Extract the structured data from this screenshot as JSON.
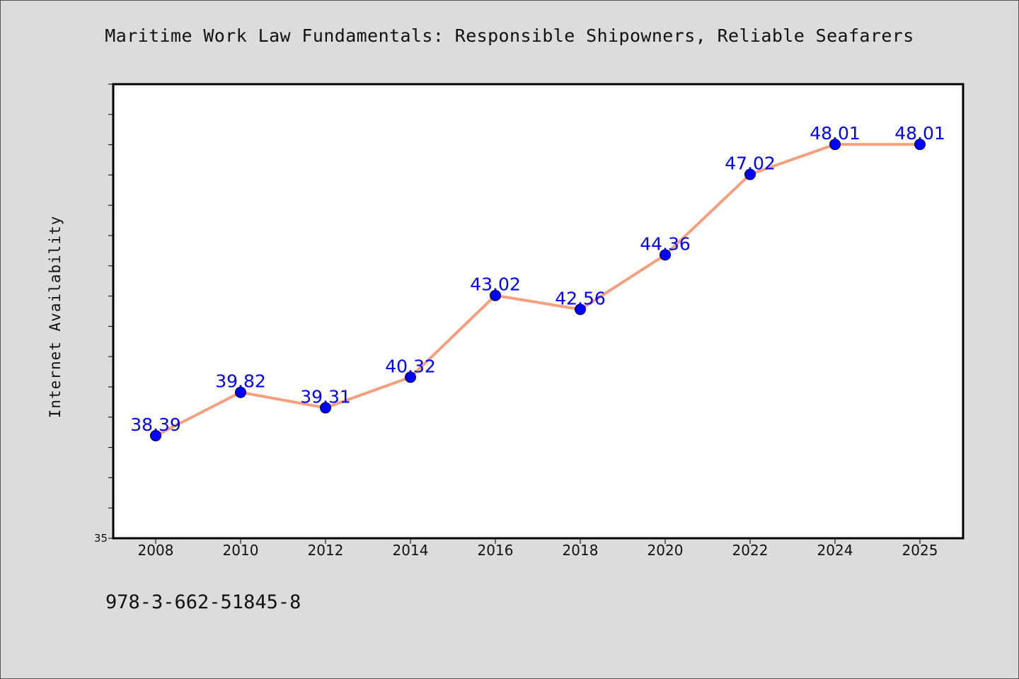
{
  "footer": {
    "code": "978-3-662-51845-8"
  },
  "colors": {
    "background": "#dcdcdc",
    "plot_background": "#ffffff",
    "line": "#f4a07e",
    "marker": "#0000ff",
    "data_label": "#0000ff"
  },
  "chart_data": {
    "type": "line",
    "title": "Maritime Work Law Fundamentals: Responsible Shipowners, Reliable Seafarers",
    "xlabel": "",
    "ylabel": "Internet Availability",
    "categories": [
      "2008",
      "2010",
      "2012",
      "2014",
      "2016",
      "2018",
      "2020",
      "2022",
      "2024",
      "2025"
    ],
    "series": [
      {
        "values": [
          38.39,
          39.82,
          39.31,
          40.32,
          43.02,
          42.56,
          44.36,
          47.02,
          48.01,
          48.01
        ],
        "labels": [
          "38.39",
          "39.82",
          "39.31",
          "40.32",
          "43.02",
          "42.56",
          "44.36",
          "47.02",
          "48.01",
          "48.01"
        ]
      }
    ],
    "ylim": [
      35,
      50
    ],
    "yticks_labeled": [
      "35"
    ],
    "grid": false,
    "legend": "none"
  }
}
